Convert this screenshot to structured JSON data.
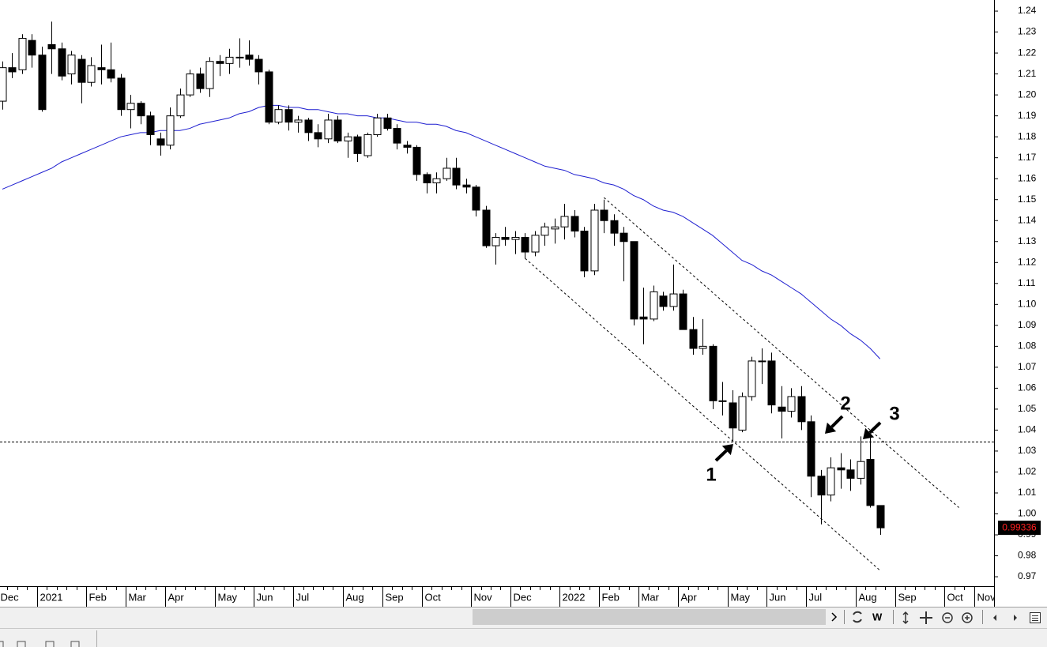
{
  "chart_data": {
    "type": "candlestick",
    "categories": [
      "Dec",
      null,
      null,
      null,
      "2021",
      null,
      null,
      null,
      null,
      "Feb",
      null,
      null,
      null,
      "Mar",
      null,
      null,
      null,
      "Apr",
      null,
      null,
      null,
      null,
      "May",
      null,
      null,
      null,
      "Jun",
      null,
      null,
      null,
      "Jul",
      null,
      null,
      null,
      null,
      "Aug",
      null,
      null,
      null,
      "Sep",
      null,
      null,
      null,
      "Oct",
      null,
      null,
      null,
      null,
      "Nov",
      null,
      null,
      null,
      "Dec",
      null,
      null,
      null,
      null,
      "2022",
      null,
      null,
      null,
      "Feb",
      null,
      null,
      null,
      "Mar",
      null,
      null,
      null,
      "Apr",
      null,
      null,
      null,
      null,
      "May",
      null,
      null,
      null,
      "Jun",
      null,
      null,
      null,
      "Jul",
      null,
      null,
      null,
      null,
      "Aug",
      null,
      null,
      null,
      "Sep",
      null,
      null,
      null,
      null,
      "Oct",
      null,
      null,
      "Nov"
    ],
    "open": [
      1.197,
      1.213,
      1.212,
      1.226,
      1.219,
      1.224,
      1.222,
      1.21,
      1.217,
      1.206,
      1.213,
      1.212,
      1.208,
      1.193,
      1.196,
      1.19,
      1.179,
      1.176,
      1.19,
      1.2,
      1.21,
      1.203,
      1.216,
      1.215,
      1.218,
      1.219,
      1.217,
      1.211,
      1.187,
      1.193,
      1.187,
      1.188,
      1.182,
      1.179,
      1.188,
      1.178,
      1.18,
      1.171,
      1.181,
      1.189,
      1.184,
      1.176,
      1.175,
      1.162,
      1.158,
      1.16,
      1.165,
      1.157,
      1.156,
      1.145,
      1.128,
      1.132,
      1.131,
      1.132,
      1.125,
      1.133,
      1.136,
      1.137,
      1.142,
      1.135,
      1.116,
      1.145,
      1.14,
      1.134,
      1.13,
      1.094,
      1.093,
      1.104,
      1.099,
      1.105,
      1.088,
      1.079,
      1.08,
      1.054,
      1.053,
      1.04,
      1.056,
      1.073,
      1.073,
      1.051,
      1.049,
      1.056,
      1.044,
      1.018,
      1.009,
      1.022,
      1.021,
      1.017,
      1.026,
      1.004,
      null,
      null,
      null,
      null,
      null,
      null,
      null,
      null,
      null,
      null
    ],
    "high": [
      1.216,
      1.22,
      1.229,
      1.229,
      1.223,
      1.235,
      1.225,
      1.221,
      1.219,
      1.218,
      1.224,
      1.225,
      1.21,
      1.2,
      1.197,
      1.192,
      1.182,
      1.194,
      1.203,
      1.212,
      1.213,
      1.218,
      1.219,
      1.222,
      1.227,
      1.226,
      1.219,
      1.212,
      1.195,
      1.195,
      1.19,
      1.189,
      1.186,
      1.191,
      1.19,
      1.182,
      1.181,
      1.182,
      1.191,
      1.191,
      1.186,
      1.178,
      1.176,
      1.163,
      1.163,
      1.17,
      1.17,
      1.16,
      1.157,
      1.147,
      1.134,
      1.137,
      1.135,
      1.134,
      1.135,
      1.139,
      1.141,
      1.148,
      1.145,
      1.137,
      1.148,
      1.15,
      1.143,
      1.137,
      1.13,
      1.108,
      1.109,
      1.106,
      1.119,
      1.107,
      1.094,
      1.093,
      1.081,
      1.063,
      1.059,
      1.058,
      1.075,
      1.079,
      1.077,
      1.061,
      1.06,
      1.061,
      1.047,
      1.021,
      1.027,
      1.029,
      1.026,
      1.037,
      1.037,
      1.004,
      null,
      null,
      null,
      null,
      null,
      null,
      null,
      null,
      null,
      null
    ],
    "low": [
      1.193,
      1.208,
      1.21,
      1.213,
      1.192,
      1.21,
      1.207,
      1.205,
      1.196,
      1.204,
      1.205,
      1.206,
      1.19,
      1.184,
      1.186,
      1.176,
      1.171,
      1.174,
      1.189,
      1.199,
      1.201,
      1.199,
      1.209,
      1.21,
      1.213,
      1.214,
      1.205,
      1.186,
      1.186,
      1.183,
      1.182,
      1.178,
      1.175,
      1.177,
      1.177,
      1.17,
      1.168,
      1.17,
      1.18,
      1.183,
      1.174,
      1.172,
      1.159,
      1.153,
      1.153,
      1.159,
      1.155,
      1.153,
      1.142,
      1.127,
      1.119,
      1.128,
      1.124,
      1.122,
      1.123,
      1.128,
      1.129,
      1.131,
      1.132,
      1.113,
      1.114,
      1.134,
      1.128,
      1.111,
      1.09,
      1.081,
      1.092,
      1.097,
      1.097,
      1.088,
      1.076,
      1.076,
      1.05,
      1.047,
      1.035,
      1.039,
      1.054,
      1.062,
      1.048,
      1.036,
      1.046,
      1.04,
      1.008,
      0.995,
      1.006,
      1.012,
      1.011,
      1.014,
      1.003,
      0.99,
      null,
      null,
      null,
      null,
      null,
      null,
      null,
      null,
      null,
      null
    ],
    "close": [
      1.213,
      1.211,
      1.227,
      1.219,
      1.193,
      1.222,
      1.209,
      1.219,
      1.206,
      1.214,
      1.212,
      1.208,
      1.193,
      1.196,
      1.19,
      1.181,
      1.176,
      1.19,
      1.2,
      1.21,
      1.203,
      1.216,
      1.215,
      1.218,
      1.218,
      1.217,
      1.211,
      1.187,
      1.193,
      1.187,
      1.188,
      1.182,
      1.179,
      1.188,
      1.178,
      1.18,
      1.172,
      1.181,
      1.189,
      1.184,
      1.177,
      1.175,
      1.162,
      1.158,
      1.16,
      1.165,
      1.157,
      1.156,
      1.145,
      1.128,
      1.132,
      1.131,
      1.132,
      1.125,
      1.133,
      1.137,
      1.137,
      1.142,
      1.135,
      1.116,
      1.145,
      1.14,
      1.134,
      1.13,
      1.093,
      1.093,
      1.106,
      1.099,
      1.105,
      1.088,
      1.079,
      1.08,
      1.054,
      1.054,
      1.041,
      1.056,
      1.073,
      1.073,
      1.052,
      1.049,
      1.056,
      1.044,
      1.018,
      1.009,
      1.022,
      1.021,
      1.017,
      1.025,
      1.004,
      0.99336,
      null,
      null,
      null,
      null,
      null,
      null,
      null,
      null,
      null,
      null
    ],
    "up_color": "#ffffff",
    "down_color": "#000000",
    "moving_average": {
      "color": "#1f1fd0",
      "values": [
        1.155,
        1.157,
        1.159,
        1.161,
        1.163,
        1.165,
        1.168,
        1.17,
        1.172,
        1.174,
        1.176,
        1.178,
        1.18,
        1.181,
        1.182,
        1.182,
        1.183,
        1.183,
        1.183,
        1.184,
        1.186,
        1.187,
        1.188,
        1.189,
        1.191,
        1.192,
        1.194,
        1.195,
        1.195,
        1.194,
        1.194,
        1.193,
        1.193,
        1.192,
        1.191,
        1.191,
        1.19,
        1.19,
        1.189,
        1.189,
        1.188,
        1.187,
        1.187,
        1.186,
        1.186,
        1.185,
        1.183,
        1.182,
        1.18,
        1.178,
        1.176,
        1.174,
        1.172,
        1.17,
        1.168,
        1.166,
        1.165,
        1.164,
        1.162,
        1.161,
        1.16,
        1.158,
        1.157,
        1.155,
        1.152,
        1.15,
        1.147,
        1.145,
        1.144,
        1.142,
        1.139,
        1.136,
        1.133,
        1.129,
        1.125,
        1.121,
        1.119,
        1.116,
        1.114,
        1.111,
        1.108,
        1.105,
        1.101,
        1.097,
        1.093,
        1.09,
        1.086,
        1.083,
        1.079,
        1.074,
        null,
        null,
        null,
        null,
        null,
        null,
        null,
        null,
        null,
        null
      ]
    },
    "hline": 1.0345,
    "trendlines": [
      {
        "x": [
          53,
          89
        ],
        "values": [
          1.122,
          0.973
        ]
      },
      {
        "x": [
          61,
          97
        ],
        "values": [
          1.151,
          1.003
        ]
      }
    ],
    "annotations": [
      "1",
      "2",
      "3"
    ],
    "ylim": [
      0.9655,
      1.2453
    ],
    "yticks": [
      0.97,
      0.98,
      0.99,
      {
        "value": 1,
        "label": "1.00"
      },
      1.01,
      1.02,
      1.03,
      1.04,
      1.05,
      1.06,
      1.07,
      1.08,
      1.09,
      {
        "value": 1.1,
        "label": "1.10"
      },
      1.11,
      1.12,
      1.13,
      1.14,
      1.15,
      1.16,
      1.17,
      1.18,
      1.19,
      {
        "value": 1.2,
        "label": "1.20"
      },
      1.21,
      1.22,
      1.23,
      1.24
    ]
  },
  "toolbar": {
    "interval": "W"
  }
}
